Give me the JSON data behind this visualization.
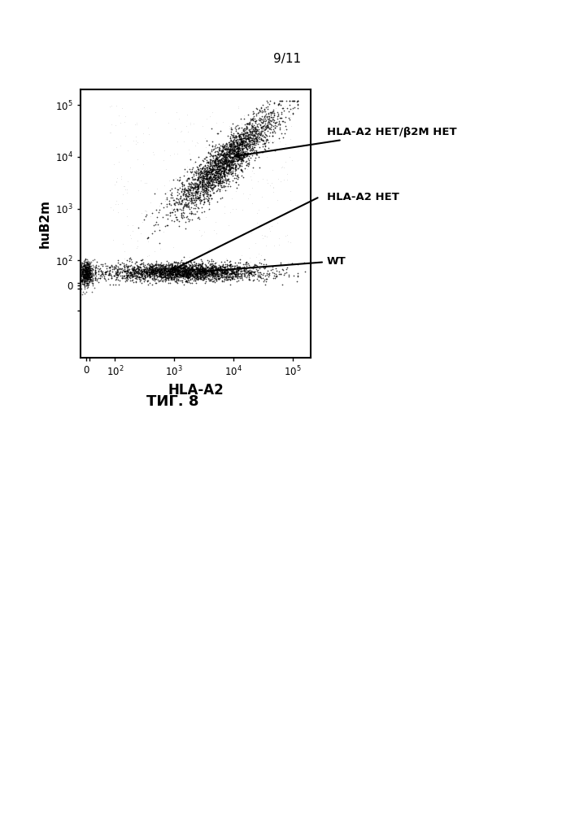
{
  "title": "9/11",
  "xlabel": "HLA-A2",
  "ylabel": "huB2m",
  "annotation1": "HLA-A2 НЕТ/β2M НЕТ",
  "annotation2": "HLA-A2 НЕТ",
  "annotation3": "WT",
  "caption": "ΤИГ. 8",
  "background_color": "#ffffff",
  "fig_width": 7.07,
  "fig_height": 10.0
}
